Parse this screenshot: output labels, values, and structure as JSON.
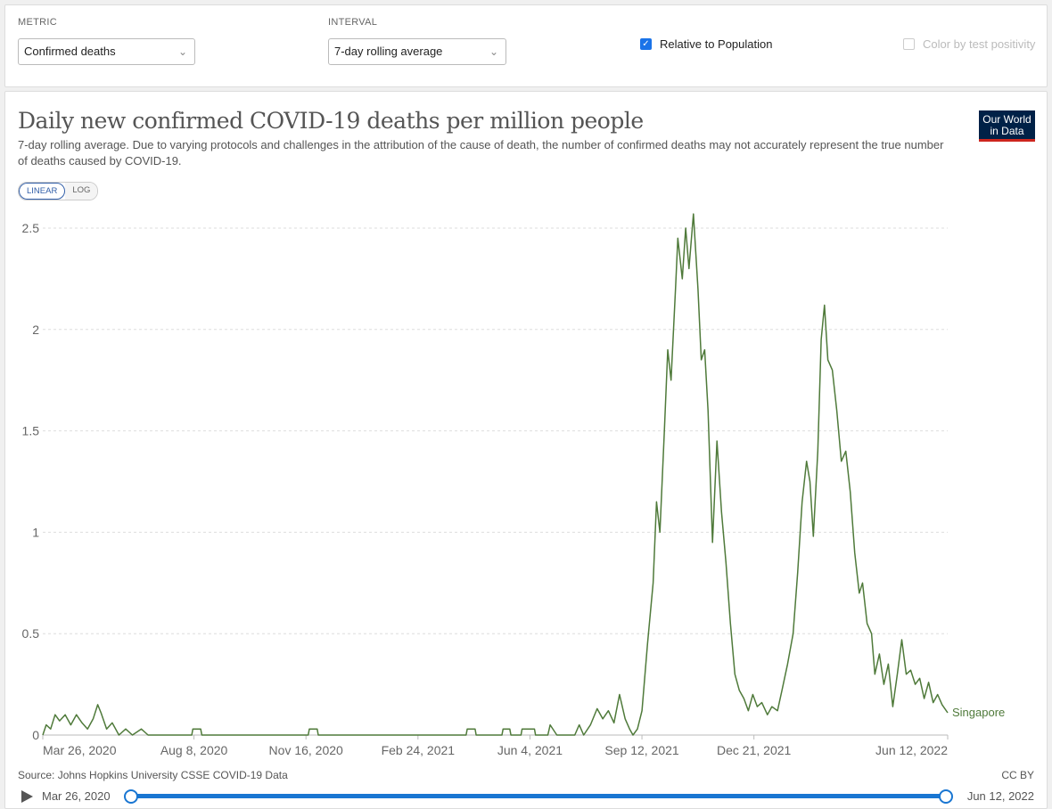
{
  "controls": {
    "metric_label": "METRIC",
    "metric_value": "Confirmed deaths",
    "interval_label": "INTERVAL",
    "interval_value": "7-day rolling average",
    "relative_label": "Relative to Population",
    "relative_checked": true,
    "positivity_label": "Color by test positivity",
    "positivity_checked": false
  },
  "header": {
    "title": "Daily new confirmed COVID-19 deaths per million people",
    "subtitle": "7-day rolling average. Due to varying protocols and challenges in the attribution of the cause of death, the number of confirmed deaths may not accurately represent the true number of deaths caused by COVID-19.",
    "logo_line1": "Our World",
    "logo_line2": "in Data"
  },
  "scale": {
    "linear": "LINEAR",
    "log": "LOG",
    "selected": "LINEAR"
  },
  "footer": {
    "source": "Source: Johns Hopkins University CSSE COVID-19 Data",
    "license": "CC BY"
  },
  "timeline": {
    "start": "Mar 26, 2020",
    "end": "Jun 12, 2022"
  },
  "colors": {
    "series": "#4f7a3a",
    "accent": "#1976d2",
    "logo_bg": "#002147",
    "logo_bar": "#ce261e"
  },
  "chart_data": {
    "type": "line",
    "title": "Daily new confirmed COVID-19 deaths per million people",
    "ylim": [
      0,
      2.5
    ],
    "yticks": [
      0,
      0.5,
      1,
      1.5,
      2,
      2.5
    ],
    "ytick_labels": [
      "0",
      "0.5",
      "1",
      "1.5",
      "2",
      "2.5"
    ],
    "xlim": [
      "2020-03-26",
      "2022-06-12"
    ],
    "xticks": [
      "2020-03-26",
      "2020-08-08",
      "2020-11-16",
      "2021-02-24",
      "2021-06-04",
      "2021-09-12",
      "2021-12-21",
      "2022-06-12"
    ],
    "xtick_labels": [
      "Mar 26, 2020",
      "Aug 8, 2020",
      "Nov 16, 2020",
      "Feb 24, 2021",
      "Jun 4, 2021",
      "Sep 12, 2021",
      "Dec 21, 2021",
      "Jun 12, 2022"
    ],
    "grid": "horizontal dashed",
    "series": [
      {
        "name": "Singapore",
        "color": "#4f7a3a",
        "points": [
          [
            "2020-03-26",
            0.0
          ],
          [
            "2020-03-29",
            0.05
          ],
          [
            "2020-04-02",
            0.03
          ],
          [
            "2020-04-06",
            0.1
          ],
          [
            "2020-04-10",
            0.07
          ],
          [
            "2020-04-15",
            0.1
          ],
          [
            "2020-04-20",
            0.05
          ],
          [
            "2020-04-25",
            0.1
          ],
          [
            "2020-04-30",
            0.06
          ],
          [
            "2020-05-05",
            0.03
          ],
          [
            "2020-05-10",
            0.08
          ],
          [
            "2020-05-14",
            0.15
          ],
          [
            "2020-05-17",
            0.11
          ],
          [
            "2020-05-22",
            0.03
          ],
          [
            "2020-05-27",
            0.06
          ],
          [
            "2020-06-02",
            0.0
          ],
          [
            "2020-06-08",
            0.03
          ],
          [
            "2020-06-14",
            0.0
          ],
          [
            "2020-06-22",
            0.03
          ],
          [
            "2020-06-28",
            0.0
          ],
          [
            "2020-08-06",
            0.0
          ],
          [
            "2020-08-07",
            0.03
          ],
          [
            "2020-08-14",
            0.03
          ],
          [
            "2020-08-15",
            0.0
          ],
          [
            "2020-11-18",
            0.0
          ],
          [
            "2020-11-19",
            0.03
          ],
          [
            "2020-11-26",
            0.03
          ],
          [
            "2020-11-27",
            0.0
          ],
          [
            "2021-04-08",
            0.0
          ],
          [
            "2021-04-09",
            0.03
          ],
          [
            "2021-04-16",
            0.03
          ],
          [
            "2021-04-17",
            0.0
          ],
          [
            "2021-05-10",
            0.0
          ],
          [
            "2021-05-11",
            0.03
          ],
          [
            "2021-05-17",
            0.03
          ],
          [
            "2021-05-18",
            0.0
          ],
          [
            "2021-05-27",
            0.0
          ],
          [
            "2021-05-28",
            0.03
          ],
          [
            "2021-06-08",
            0.03
          ],
          [
            "2021-06-09",
            0.0
          ],
          [
            "2021-06-20",
            0.0
          ],
          [
            "2021-06-22",
            0.05
          ],
          [
            "2021-06-28",
            0.0
          ],
          [
            "2021-07-14",
            0.0
          ],
          [
            "2021-07-18",
            0.05
          ],
          [
            "2021-07-22",
            0.0
          ],
          [
            "2021-07-28",
            0.05
          ],
          [
            "2021-08-03",
            0.13
          ],
          [
            "2021-08-08",
            0.08
          ],
          [
            "2021-08-13",
            0.12
          ],
          [
            "2021-08-18",
            0.06
          ],
          [
            "2021-08-23",
            0.2
          ],
          [
            "2021-08-28",
            0.08
          ],
          [
            "2021-09-01",
            0.03
          ],
          [
            "2021-09-04",
            0.0
          ],
          [
            "2021-09-08",
            0.03
          ],
          [
            "2021-09-12",
            0.12
          ],
          [
            "2021-09-17",
            0.45
          ],
          [
            "2021-09-22",
            0.75
          ],
          [
            "2021-09-25",
            1.15
          ],
          [
            "2021-09-28",
            1.0
          ],
          [
            "2021-10-02",
            1.5
          ],
          [
            "2021-10-05",
            1.9
          ],
          [
            "2021-10-08",
            1.75
          ],
          [
            "2021-10-12",
            2.2
          ],
          [
            "2021-10-14",
            2.45
          ],
          [
            "2021-10-18",
            2.25
          ],
          [
            "2021-10-21",
            2.5
          ],
          [
            "2021-10-24",
            2.3
          ],
          [
            "2021-10-28",
            2.57
          ],
          [
            "2021-11-01",
            2.2
          ],
          [
            "2021-11-04",
            1.85
          ],
          [
            "2021-11-07",
            1.9
          ],
          [
            "2021-11-10",
            1.6
          ],
          [
            "2021-11-14",
            0.95
          ],
          [
            "2021-11-18",
            1.45
          ],
          [
            "2021-11-22",
            1.1
          ],
          [
            "2021-11-26",
            0.85
          ],
          [
            "2021-11-30",
            0.55
          ],
          [
            "2021-12-04",
            0.3
          ],
          [
            "2021-12-08",
            0.22
          ],
          [
            "2021-12-12",
            0.18
          ],
          [
            "2021-12-16",
            0.12
          ],
          [
            "2021-12-20",
            0.2
          ],
          [
            "2021-12-24",
            0.14
          ],
          [
            "2021-12-28",
            0.16
          ],
          [
            "2022-01-02",
            0.1
          ],
          [
            "2022-01-06",
            0.14
          ],
          [
            "2022-01-11",
            0.12
          ],
          [
            "2022-01-15",
            0.22
          ],
          [
            "2022-01-20",
            0.35
          ],
          [
            "2022-01-25",
            0.5
          ],
          [
            "2022-01-29",
            0.8
          ],
          [
            "2022-02-02",
            1.15
          ],
          [
            "2022-02-06",
            1.35
          ],
          [
            "2022-02-09",
            1.25
          ],
          [
            "2022-02-12",
            0.98
          ],
          [
            "2022-02-16",
            1.4
          ],
          [
            "2022-02-19",
            1.95
          ],
          [
            "2022-02-22",
            2.12
          ],
          [
            "2022-02-25",
            1.85
          ],
          [
            "2022-03-01",
            1.8
          ],
          [
            "2022-03-05",
            1.6
          ],
          [
            "2022-03-09",
            1.35
          ],
          [
            "2022-03-13",
            1.4
          ],
          [
            "2022-03-17",
            1.2
          ],
          [
            "2022-03-21",
            0.9
          ],
          [
            "2022-03-25",
            0.7
          ],
          [
            "2022-03-28",
            0.75
          ],
          [
            "2022-04-01",
            0.55
          ],
          [
            "2022-04-05",
            0.5
          ],
          [
            "2022-04-08",
            0.3
          ],
          [
            "2022-04-12",
            0.4
          ],
          [
            "2022-04-16",
            0.25
          ],
          [
            "2022-04-20",
            0.35
          ],
          [
            "2022-04-24",
            0.14
          ],
          [
            "2022-04-28",
            0.3
          ],
          [
            "2022-05-02",
            0.47
          ],
          [
            "2022-05-06",
            0.3
          ],
          [
            "2022-05-10",
            0.32
          ],
          [
            "2022-05-14",
            0.25
          ],
          [
            "2022-05-18",
            0.28
          ],
          [
            "2022-05-22",
            0.18
          ],
          [
            "2022-05-26",
            0.26
          ],
          [
            "2022-05-30",
            0.16
          ],
          [
            "2022-06-03",
            0.2
          ],
          [
            "2022-06-07",
            0.15
          ],
          [
            "2022-06-12",
            0.11
          ]
        ]
      }
    ]
  }
}
